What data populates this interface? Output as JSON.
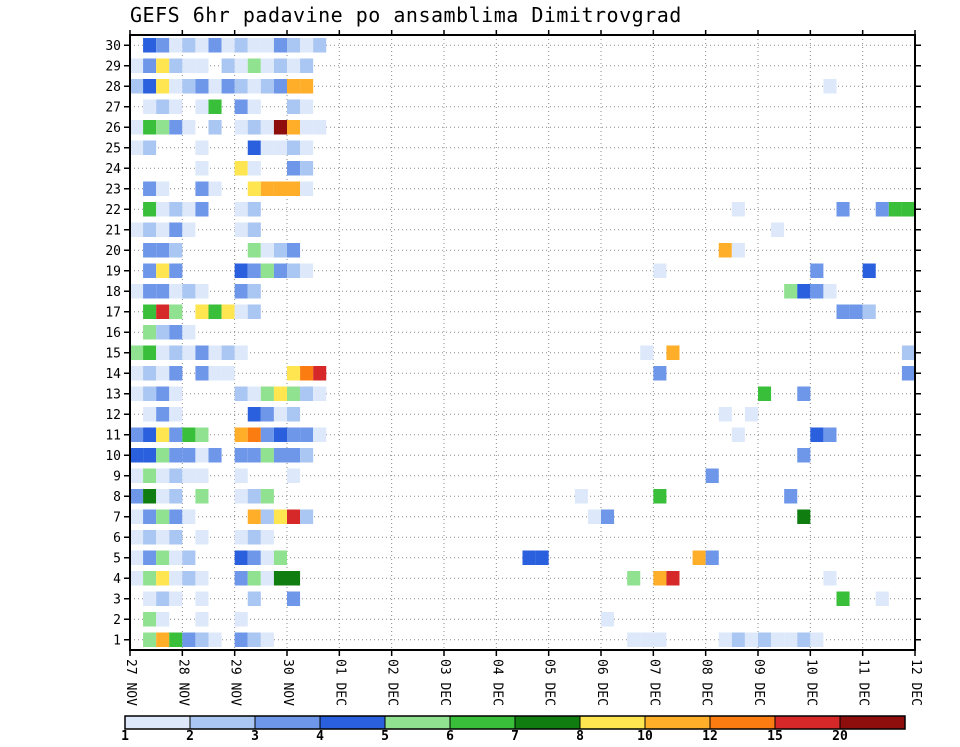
{
  "title": "GEFS 6hr padavine po ansamblima Dimitrovgrad",
  "chart_data": {
    "type": "heatmap",
    "title": "GEFS 6hr padavine po ansamblima Dimitrovgrad",
    "x_tick_labels": [
      "27 NOV",
      "28 NOV",
      "29 NOV",
      "30 NOV",
      "01 DEC",
      "02 DEC",
      "03 DEC",
      "04 DEC",
      "05 DEC",
      "06 DEC",
      "07 DEC",
      "08 DEC",
      "09 DEC",
      "10 DEC",
      "11 DEC",
      "12 DEC"
    ],
    "steps_per_day": 4,
    "n_cols": 60,
    "n_rows": 30,
    "y_tick_labels": [
      "1",
      "2",
      "3",
      "4",
      "5",
      "6",
      "7",
      "8",
      "9",
      "10",
      "11",
      "12",
      "13",
      "14",
      "15",
      "16",
      "17",
      "18",
      "19",
      "20",
      "21",
      "22",
      "23",
      "24",
      "25",
      "26",
      "27",
      "28",
      "29",
      "30"
    ],
    "grid": "dotted",
    "legend_position": "bottom",
    "units_note": "6hr precipitation (mm) per ensemble member",
    "scale": {
      "thresholds": [
        1,
        2,
        3,
        4,
        5,
        6,
        7,
        8,
        10,
        12,
        15,
        20
      ],
      "labels": [
        "1",
        "2",
        "3",
        "4",
        "5",
        "6",
        "7",
        "8",
        "10",
        "12",
        "15",
        "20"
      ],
      "colors": [
        "#dde8fa",
        "#aac6f2",
        "#6e97ea",
        "#2a5fdd",
        "#90e190",
        "#39bf39",
        "#0f7d0f",
        "#ffe650",
        "#ffae2a",
        "#fb7d12",
        "#d62828",
        "#8e0e0e"
      ]
    },
    "cells": [
      [
        30,
        1,
        4
      ],
      [
        30,
        2,
        3
      ],
      [
        30,
        3,
        1
      ],
      [
        30,
        4,
        2
      ],
      [
        30,
        5,
        1
      ],
      [
        30,
        6,
        3
      ],
      [
        30,
        7,
        1
      ],
      [
        30,
        8,
        2
      ],
      [
        30,
        9,
        1
      ],
      [
        30,
        10,
        1
      ],
      [
        30,
        11,
        3
      ],
      [
        30,
        12,
        2
      ],
      [
        30,
        13,
        1
      ],
      [
        30,
        14,
        2
      ],
      [
        29,
        0,
        1
      ],
      [
        29,
        1,
        3
      ],
      [
        29,
        2,
        8
      ],
      [
        29,
        3,
        2
      ],
      [
        29,
        4,
        1
      ],
      [
        29,
        5,
        1
      ],
      [
        29,
        7,
        2
      ],
      [
        29,
        8,
        1
      ],
      [
        29,
        9,
        5
      ],
      [
        29,
        10,
        1
      ],
      [
        29,
        11,
        2
      ],
      [
        29,
        12,
        1
      ],
      [
        29,
        13,
        2
      ],
      [
        28,
        0,
        2
      ],
      [
        28,
        1,
        4
      ],
      [
        28,
        2,
        8
      ],
      [
        28,
        3,
        1
      ],
      [
        28,
        4,
        2
      ],
      [
        28,
        5,
        3
      ],
      [
        28,
        6,
        1
      ],
      [
        28,
        7,
        3
      ],
      [
        28,
        8,
        2
      ],
      [
        28,
        9,
        1
      ],
      [
        28,
        10,
        2
      ],
      [
        28,
        11,
        3
      ],
      [
        28,
        12,
        10
      ],
      [
        28,
        13,
        10
      ],
      [
        28,
        53,
        1
      ],
      [
        27,
        1,
        1
      ],
      [
        27,
        2,
        2
      ],
      [
        27,
        3,
        1
      ],
      [
        27,
        5,
        1
      ],
      [
        27,
        6,
        6
      ],
      [
        27,
        8,
        3
      ],
      [
        27,
        9,
        1
      ],
      [
        27,
        12,
        2
      ],
      [
        27,
        13,
        1
      ],
      [
        26,
        0,
        1
      ],
      [
        26,
        1,
        6
      ],
      [
        26,
        2,
        5
      ],
      [
        26,
        3,
        3
      ],
      [
        26,
        4,
        1
      ],
      [
        26,
        6,
        2
      ],
      [
        26,
        8,
        1
      ],
      [
        26,
        9,
        2
      ],
      [
        26,
        10,
        1
      ],
      [
        26,
        11,
        20
      ],
      [
        26,
        12,
        10
      ],
      [
        26,
        13,
        1
      ],
      [
        26,
        14,
        1
      ],
      [
        25,
        0,
        1
      ],
      [
        25,
        1,
        2
      ],
      [
        25,
        5,
        1
      ],
      [
        25,
        9,
        4
      ],
      [
        25,
        10,
        1
      ],
      [
        25,
        11,
        1
      ],
      [
        25,
        12,
        2
      ],
      [
        25,
        13,
        1
      ],
      [
        24,
        5,
        1
      ],
      [
        24,
        8,
        8
      ],
      [
        24,
        9,
        1
      ],
      [
        24,
        12,
        3
      ],
      [
        24,
        13,
        2
      ],
      [
        23,
        1,
        3
      ],
      [
        23,
        2,
        1
      ],
      [
        23,
        5,
        3
      ],
      [
        23,
        6,
        1
      ],
      [
        23,
        9,
        8
      ],
      [
        23,
        10,
        10
      ],
      [
        23,
        11,
        10
      ],
      [
        23,
        12,
        10
      ],
      [
        23,
        13,
        1
      ],
      [
        22,
        1,
        6
      ],
      [
        22,
        2,
        1
      ],
      [
        22,
        3,
        2
      ],
      [
        22,
        4,
        1
      ],
      [
        22,
        5,
        3
      ],
      [
        22,
        8,
        1
      ],
      [
        22,
        9,
        2
      ],
      [
        22,
        46,
        1
      ],
      [
        22,
        54,
        3
      ],
      [
        22,
        57,
        3
      ],
      [
        22,
        58,
        6
      ],
      [
        22,
        59,
        6
      ],
      [
        21,
        0,
        1
      ],
      [
        21,
        1,
        2
      ],
      [
        21,
        2,
        1
      ],
      [
        21,
        3,
        3
      ],
      [
        21,
        4,
        1
      ],
      [
        21,
        8,
        1
      ],
      [
        21,
        9,
        2
      ],
      [
        21,
        49,
        1
      ],
      [
        20,
        1,
        3
      ],
      [
        20,
        2,
        3
      ],
      [
        20,
        3,
        2
      ],
      [
        20,
        9,
        5
      ],
      [
        20,
        10,
        1
      ],
      [
        20,
        11,
        2
      ],
      [
        20,
        12,
        3
      ],
      [
        20,
        45,
        10
      ],
      [
        20,
        46,
        1
      ],
      [
        19,
        1,
        3
      ],
      [
        19,
        2,
        8
      ],
      [
        19,
        3,
        3
      ],
      [
        19,
        8,
        4
      ],
      [
        19,
        9,
        3
      ],
      [
        19,
        10,
        5
      ],
      [
        19,
        11,
        3
      ],
      [
        19,
        12,
        2
      ],
      [
        19,
        13,
        1
      ],
      [
        19,
        40,
        1
      ],
      [
        19,
        52,
        3
      ],
      [
        19,
        56,
        4
      ],
      [
        18,
        0,
        1
      ],
      [
        18,
        1,
        3
      ],
      [
        18,
        2,
        3
      ],
      [
        18,
        3,
        1
      ],
      [
        18,
        4,
        2
      ],
      [
        18,
        5,
        1
      ],
      [
        18,
        8,
        3
      ],
      [
        18,
        9,
        2
      ],
      [
        18,
        50,
        5
      ],
      [
        18,
        51,
        4
      ],
      [
        18,
        52,
        3
      ],
      [
        18,
        53,
        1
      ],
      [
        17,
        1,
        6
      ],
      [
        17,
        2,
        15
      ],
      [
        17,
        3,
        5
      ],
      [
        17,
        5,
        8
      ],
      [
        17,
        6,
        6
      ],
      [
        17,
        7,
        8
      ],
      [
        17,
        8,
        1
      ],
      [
        17,
        9,
        2
      ],
      [
        17,
        54,
        3
      ],
      [
        17,
        55,
        3
      ],
      [
        17,
        56,
        2
      ],
      [
        16,
        1,
        5
      ],
      [
        16,
        2,
        2
      ],
      [
        16,
        3,
        3
      ],
      [
        16,
        4,
        1
      ],
      [
        15,
        0,
        5
      ],
      [
        15,
        1,
        6
      ],
      [
        15,
        2,
        1
      ],
      [
        15,
        3,
        2
      ],
      [
        15,
        4,
        1
      ],
      [
        15,
        5,
        3
      ],
      [
        15,
        6,
        1
      ],
      [
        15,
        7,
        2
      ],
      [
        15,
        8,
        1
      ],
      [
        15,
        39,
        1
      ],
      [
        15,
        41,
        10
      ],
      [
        15,
        59,
        2
      ],
      [
        14,
        0,
        1
      ],
      [
        14,
        1,
        2
      ],
      [
        14,
        2,
        1
      ],
      [
        14,
        3,
        3
      ],
      [
        14,
        5,
        3
      ],
      [
        14,
        6,
        1
      ],
      [
        14,
        7,
        1
      ],
      [
        14,
        12,
        8
      ],
      [
        14,
        13,
        12
      ],
      [
        14,
        14,
        15
      ],
      [
        14,
        40,
        3
      ],
      [
        14,
        59,
        3
      ],
      [
        13,
        0,
        1
      ],
      [
        13,
        1,
        2
      ],
      [
        13,
        2,
        3
      ],
      [
        13,
        3,
        1
      ],
      [
        13,
        8,
        2
      ],
      [
        13,
        9,
        1
      ],
      [
        13,
        10,
        5
      ],
      [
        13,
        11,
        8
      ],
      [
        13,
        12,
        5
      ],
      [
        13,
        13,
        2
      ],
      [
        13,
        14,
        1
      ],
      [
        13,
        48,
        6
      ],
      [
        13,
        51,
        3
      ],
      [
        12,
        1,
        1
      ],
      [
        12,
        2,
        3
      ],
      [
        12,
        3,
        1
      ],
      [
        12,
        9,
        4
      ],
      [
        12,
        10,
        3
      ],
      [
        12,
        11,
        1
      ],
      [
        12,
        12,
        2
      ],
      [
        12,
        45,
        1
      ],
      [
        12,
        47,
        1
      ],
      [
        11,
        0,
        3
      ],
      [
        11,
        1,
        4
      ],
      [
        11,
        2,
        8
      ],
      [
        11,
        3,
        3
      ],
      [
        11,
        4,
        6
      ],
      [
        11,
        5,
        5
      ],
      [
        11,
        8,
        10
      ],
      [
        11,
        9,
        12
      ],
      [
        11,
        10,
        3
      ],
      [
        11,
        11,
        4
      ],
      [
        11,
        12,
        3
      ],
      [
        11,
        13,
        3
      ],
      [
        11,
        14,
        1
      ],
      [
        11,
        46,
        1
      ],
      [
        11,
        52,
        4
      ],
      [
        11,
        53,
        3
      ],
      [
        10,
        0,
        4
      ],
      [
        10,
        1,
        4
      ],
      [
        10,
        2,
        5
      ],
      [
        10,
        3,
        3
      ],
      [
        10,
        4,
        3
      ],
      [
        10,
        5,
        1
      ],
      [
        10,
        6,
        3
      ],
      [
        10,
        8,
        3
      ],
      [
        10,
        9,
        3
      ],
      [
        10,
        10,
        5
      ],
      [
        10,
        11,
        3
      ],
      [
        10,
        12,
        3
      ],
      [
        10,
        13,
        2
      ],
      [
        10,
        51,
        3
      ],
      [
        9,
        0,
        1
      ],
      [
        9,
        1,
        5
      ],
      [
        9,
        2,
        1
      ],
      [
        9,
        3,
        2
      ],
      [
        9,
        4,
        1
      ],
      [
        9,
        5,
        1
      ],
      [
        9,
        8,
        1
      ],
      [
        9,
        12,
        1
      ],
      [
        9,
        44,
        3
      ],
      [
        8,
        0,
        3
      ],
      [
        8,
        1,
        7
      ],
      [
        8,
        2,
        1
      ],
      [
        8,
        3,
        2
      ],
      [
        8,
        5,
        5
      ],
      [
        8,
        8,
        1
      ],
      [
        8,
        9,
        2
      ],
      [
        8,
        10,
        5
      ],
      [
        8,
        34,
        1
      ],
      [
        8,
        40,
        6
      ],
      [
        8,
        50,
        3
      ],
      [
        7,
        0,
        1
      ],
      [
        7,
        1,
        3
      ],
      [
        7,
        2,
        5
      ],
      [
        7,
        3,
        3
      ],
      [
        7,
        4,
        1
      ],
      [
        7,
        9,
        10
      ],
      [
        7,
        10,
        2
      ],
      [
        7,
        11,
        8
      ],
      [
        7,
        12,
        15
      ],
      [
        7,
        13,
        2
      ],
      [
        7,
        35,
        1
      ],
      [
        7,
        36,
        3
      ],
      [
        7,
        51,
        7
      ],
      [
        6,
        0,
        1
      ],
      [
        6,
        1,
        2
      ],
      [
        6,
        2,
        1
      ],
      [
        6,
        3,
        2
      ],
      [
        6,
        5,
        1
      ],
      [
        6,
        8,
        1
      ],
      [
        6,
        9,
        2
      ],
      [
        6,
        10,
        1
      ],
      [
        5,
        0,
        1
      ],
      [
        5,
        1,
        3
      ],
      [
        5,
        2,
        5
      ],
      [
        5,
        3,
        1
      ],
      [
        5,
        4,
        2
      ],
      [
        5,
        8,
        4
      ],
      [
        5,
        9,
        3
      ],
      [
        5,
        10,
        1
      ],
      [
        5,
        11,
        5
      ],
      [
        5,
        30,
        4
      ],
      [
        5,
        31,
        4
      ],
      [
        5,
        43,
        10
      ],
      [
        5,
        44,
        3
      ],
      [
        4,
        0,
        1
      ],
      [
        4,
        1,
        5
      ],
      [
        4,
        2,
        8
      ],
      [
        4,
        3,
        1
      ],
      [
        4,
        4,
        2
      ],
      [
        4,
        5,
        1
      ],
      [
        4,
        8,
        3
      ],
      [
        4,
        9,
        5
      ],
      [
        4,
        10,
        1
      ],
      [
        4,
        11,
        7
      ],
      [
        4,
        12,
        7
      ],
      [
        4,
        38,
        5
      ],
      [
        4,
        40,
        10
      ],
      [
        4,
        41,
        15
      ],
      [
        4,
        53,
        1
      ],
      [
        3,
        1,
        1
      ],
      [
        3,
        2,
        2
      ],
      [
        3,
        3,
        1
      ],
      [
        3,
        5,
        1
      ],
      [
        3,
        9,
        2
      ],
      [
        3,
        12,
        3
      ],
      [
        3,
        54,
        6
      ],
      [
        3,
        57,
        1
      ],
      [
        2,
        1,
        5
      ],
      [
        2,
        2,
        1
      ],
      [
        2,
        5,
        1
      ],
      [
        2,
        8,
        1
      ],
      [
        2,
        36,
        1
      ],
      [
        1,
        1,
        5
      ],
      [
        1,
        2,
        10
      ],
      [
        1,
        3,
        6
      ],
      [
        1,
        4,
        3
      ],
      [
        1,
        5,
        2
      ],
      [
        1,
        6,
        1
      ],
      [
        1,
        8,
        3
      ],
      [
        1,
        9,
        2
      ],
      [
        1,
        10,
        1
      ],
      [
        1,
        38,
        1
      ],
      [
        1,
        39,
        1
      ],
      [
        1,
        40,
        1
      ],
      [
        1,
        45,
        1
      ],
      [
        1,
        46,
        2
      ],
      [
        1,
        47,
        1
      ],
      [
        1,
        48,
        2
      ],
      [
        1,
        49,
        1
      ],
      [
        1,
        50,
        1
      ],
      [
        1,
        51,
        2
      ],
      [
        1,
        52,
        1
      ]
    ]
  }
}
